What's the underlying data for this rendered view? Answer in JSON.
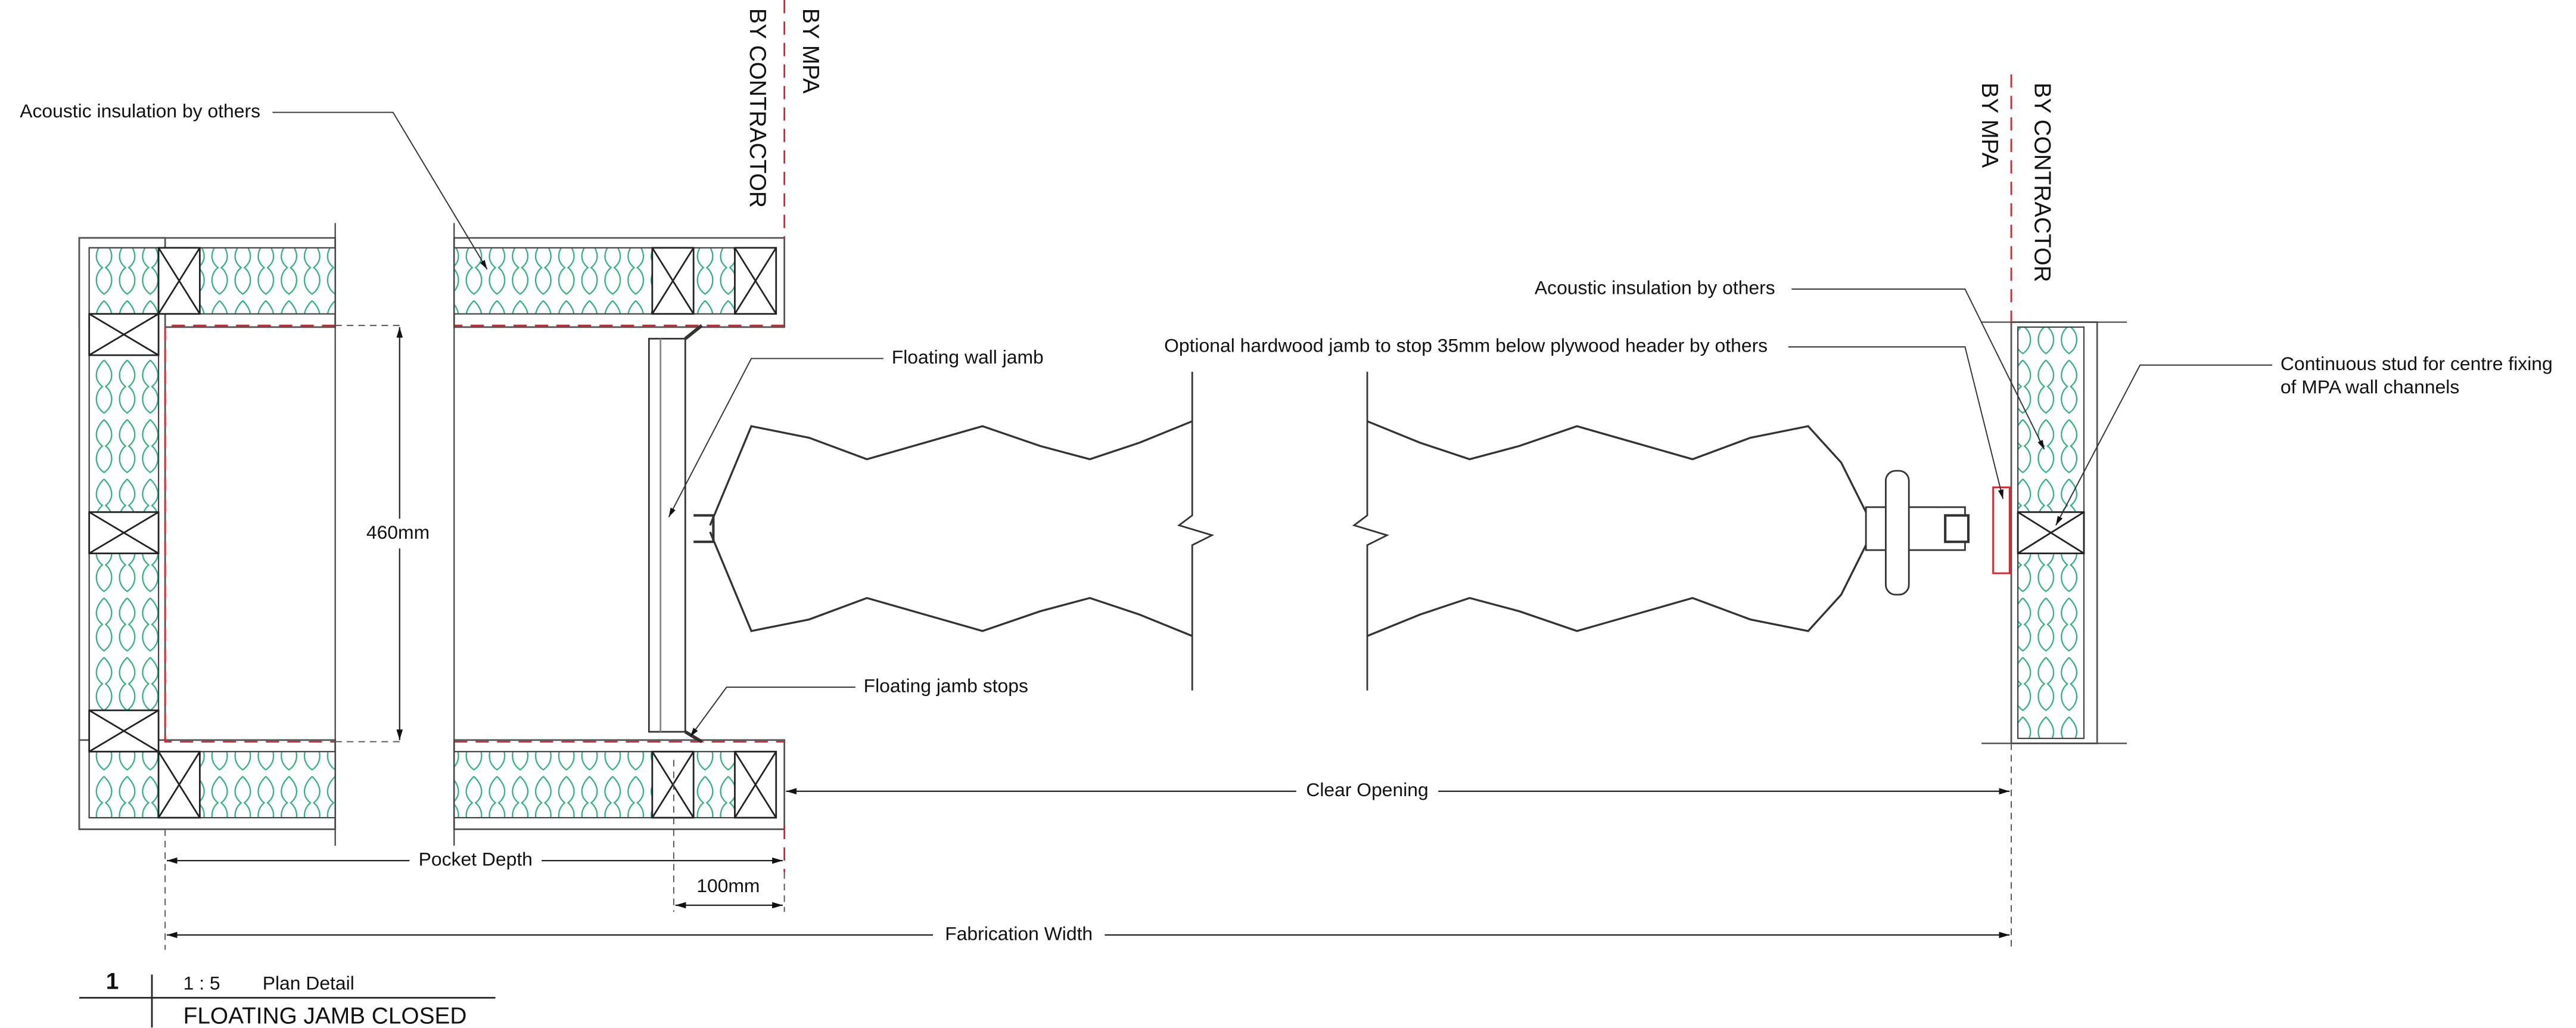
{
  "boundary_labels": {
    "left_mpa": "BY MPA",
    "left_contractor": "BY CONTRACTOR",
    "right_contractor": "BY CONTRACTOR",
    "right_mpa": "BY MPA"
  },
  "callouts": {
    "acoustic_left": "Acoustic insulation by others",
    "floating_wall_jamb": "Floating wall jamb",
    "optional_hardwood": "Optional hardwood jamb to stop 35mm below plywood header by others",
    "acoustic_right": "Acoustic insulation by others",
    "continuous_stud": [
      "Continuous stud for centre fixing",
      "of MPA wall channels"
    ],
    "floating_jamb_stops": "Floating jamb stops"
  },
  "dimensions": {
    "pocket_width": "460mm",
    "clear_opening": "Clear Opening",
    "pocket_depth": "Pocket Depth",
    "jamb_offset": "100mm",
    "fabrication_width": "Fabrication Width"
  },
  "title_block": {
    "number": "1",
    "scale": "1 : 5",
    "view": "Plan Detail",
    "title": "FLOATING JAMB CLOSED"
  }
}
